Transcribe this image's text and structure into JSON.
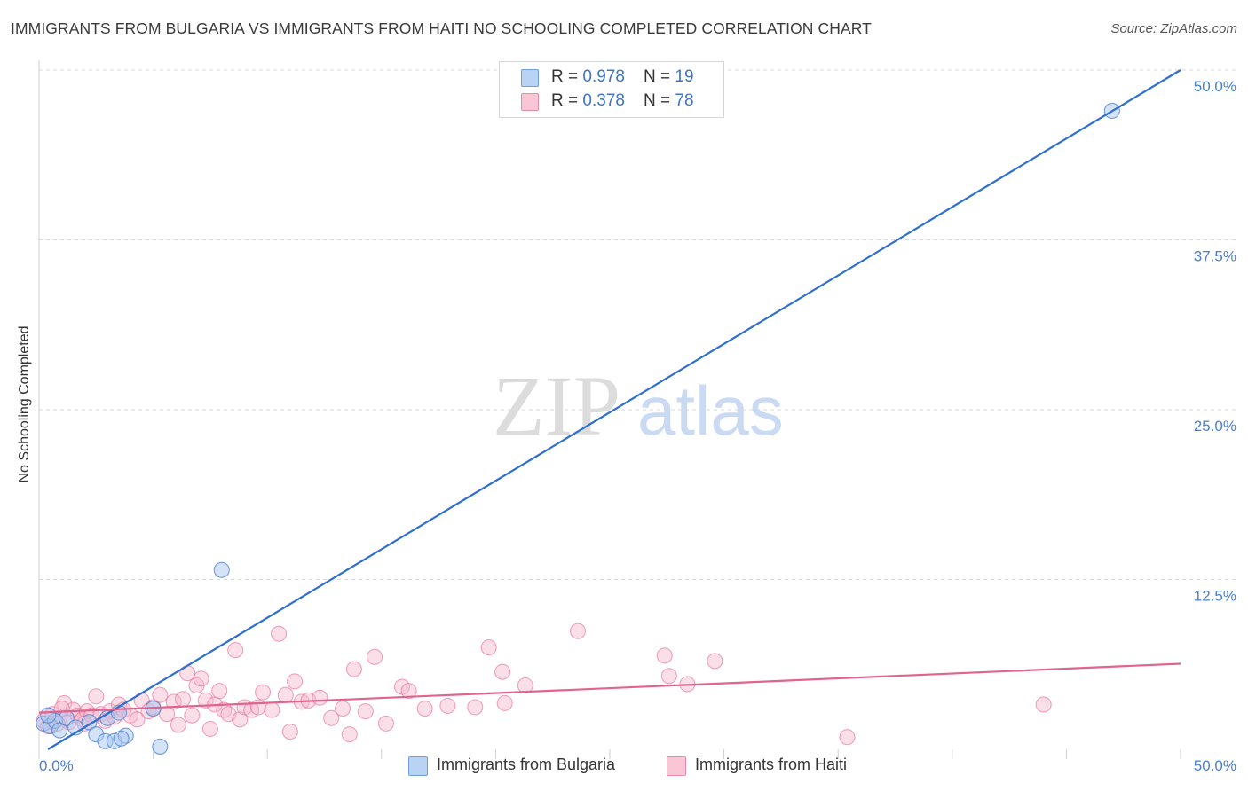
{
  "title": "IMMIGRANTS FROM BULGARIA VS IMMIGRANTS FROM HAITI NO SCHOOLING COMPLETED CORRELATION CHART",
  "source": "Source: ZipAtlas.com",
  "watermark": {
    "zip": "ZIP",
    "atlas": "atlas"
  },
  "colors": {
    "blue": "#4a7fcf",
    "blue_fill": "#a9c8f0",
    "blue_line": "#2e6fd0",
    "pink": "#e86b97",
    "pink_fill": "#f6b8cc",
    "pink_line": "#e0648f",
    "grid": "#d9d9d9",
    "tick_text": "#4a7fcf"
  },
  "legend": {
    "items": [
      {
        "r_label": "R = ",
        "r_value": "0.978",
        "n_label": "N = ",
        "n_value": "19"
      },
      {
        "r_label": "R = ",
        "r_value": "0.378",
        "n_label": "N = ",
        "n_value": "78"
      }
    ]
  },
  "bottom_legend": {
    "bulgaria": "Immigrants from Bulgaria",
    "haiti": "Immigrants from Haiti"
  },
  "chart_data": {
    "type": "scatter",
    "title": "IMMIGRANTS FROM BULGARIA VS IMMIGRANTS FROM HAITI NO SCHOOLING COMPLETED CORRELATION CHART",
    "xlabel": "",
    "ylabel": "No Schooling Completed",
    "xlim": [
      0,
      50
    ],
    "ylim": [
      0,
      50
    ],
    "x_ticks": [
      "0.0%",
      "50.0%"
    ],
    "y_ticks": [
      "12.5%",
      "25.0%",
      "37.5%",
      "50.0%"
    ],
    "y_tick_values": [
      12.5,
      25.0,
      37.5,
      50.0
    ],
    "grid": true,
    "legend_position": "top-center",
    "series": [
      {
        "name": "Immigrants from Bulgaria",
        "r": 0.978,
        "n": 19,
        "trend": {
          "x": [
            0.0,
            50.0
          ],
          "y": [
            0.0,
            50.0
          ]
        },
        "points": [
          {
            "x": 0.2,
            "y": 1.9
          },
          {
            "x": 0.5,
            "y": 1.7
          },
          {
            "x": 0.7,
            "y": 2.1
          },
          {
            "x": 0.9,
            "y": 1.4
          },
          {
            "x": 1.2,
            "y": 2.3
          },
          {
            "x": 1.6,
            "y": 1.6
          },
          {
            "x": 2.2,
            "y": 2.0
          },
          {
            "x": 2.5,
            "y": 1.1
          },
          {
            "x": 2.9,
            "y": 0.6
          },
          {
            "x": 3.0,
            "y": 2.3
          },
          {
            "x": 3.3,
            "y": 0.6
          },
          {
            "x": 3.5,
            "y": 2.7
          },
          {
            "x": 3.8,
            "y": 1.0
          },
          {
            "x": 3.6,
            "y": 0.8
          },
          {
            "x": 5.0,
            "y": 3.0
          },
          {
            "x": 5.3,
            "y": 0.2
          },
          {
            "x": 8.0,
            "y": 13.2
          },
          {
            "x": 47.0,
            "y": 47.0
          },
          {
            "x": 0.4,
            "y": 2.5
          }
        ]
      },
      {
        "name": "Immigrants from Haiti",
        "r": 0.378,
        "n": 78,
        "trend": {
          "x": [
            0.0,
            50.0
          ],
          "y": [
            2.7,
            6.3
          ]
        },
        "points": [
          {
            "x": 0.2,
            "y": 2.1
          },
          {
            "x": 0.4,
            "y": 1.7
          },
          {
            "x": 0.6,
            "y": 2.6
          },
          {
            "x": 0.9,
            "y": 2.3
          },
          {
            "x": 1.1,
            "y": 3.4
          },
          {
            "x": 1.3,
            "y": 2.0
          },
          {
            "x": 1.5,
            "y": 2.9
          },
          {
            "x": 1.7,
            "y": 2.5
          },
          {
            "x": 1.9,
            "y": 2.2
          },
          {
            "x": 2.1,
            "y": 2.8
          },
          {
            "x": 2.3,
            "y": 2.5
          },
          {
            "x": 2.5,
            "y": 3.9
          },
          {
            "x": 2.7,
            "y": 2.6
          },
          {
            "x": 2.9,
            "y": 2.1
          },
          {
            "x": 3.1,
            "y": 2.8
          },
          {
            "x": 3.3,
            "y": 2.4
          },
          {
            "x": 3.5,
            "y": 3.3
          },
          {
            "x": 3.7,
            "y": 2.9
          },
          {
            "x": 4.0,
            "y": 2.5
          },
          {
            "x": 4.3,
            "y": 2.2
          },
          {
            "x": 4.5,
            "y": 3.6
          },
          {
            "x": 4.8,
            "y": 2.8
          },
          {
            "x": 5.0,
            "y": 3.1
          },
          {
            "x": 5.3,
            "y": 4.0
          },
          {
            "x": 5.6,
            "y": 2.6
          },
          {
            "x": 5.9,
            "y": 3.5
          },
          {
            "x": 6.1,
            "y": 1.8
          },
          {
            "x": 6.3,
            "y": 3.7
          },
          {
            "x": 6.5,
            "y": 5.6
          },
          {
            "x": 6.7,
            "y": 2.5
          },
          {
            "x": 6.9,
            "y": 4.7
          },
          {
            "x": 7.1,
            "y": 5.2
          },
          {
            "x": 7.3,
            "y": 3.6
          },
          {
            "x": 7.5,
            "y": 1.5
          },
          {
            "x": 7.7,
            "y": 3.3
          },
          {
            "x": 7.9,
            "y": 4.3
          },
          {
            "x": 8.1,
            "y": 2.9
          },
          {
            "x": 8.3,
            "y": 2.6
          },
          {
            "x": 8.6,
            "y": 7.3
          },
          {
            "x": 8.8,
            "y": 2.2
          },
          {
            "x": 9.0,
            "y": 3.1
          },
          {
            "x": 9.3,
            "y": 2.9
          },
          {
            "x": 9.6,
            "y": 3.1
          },
          {
            "x": 9.8,
            "y": 4.2
          },
          {
            "x": 10.2,
            "y": 2.9
          },
          {
            "x": 10.5,
            "y": 8.5
          },
          {
            "x": 10.8,
            "y": 4.0
          },
          {
            "x": 11.0,
            "y": 1.3
          },
          {
            "x": 11.2,
            "y": 5.0
          },
          {
            "x": 11.5,
            "y": 3.5
          },
          {
            "x": 11.8,
            "y": 3.6
          },
          {
            "x": 12.3,
            "y": 3.8
          },
          {
            "x": 12.8,
            "y": 2.3
          },
          {
            "x": 13.3,
            "y": 3.0
          },
          {
            "x": 13.6,
            "y": 1.1
          },
          {
            "x": 13.8,
            "y": 5.9
          },
          {
            "x": 14.3,
            "y": 2.8
          },
          {
            "x": 14.7,
            "y": 6.8
          },
          {
            "x": 15.2,
            "y": 1.9
          },
          {
            "x": 15.9,
            "y": 4.6
          },
          {
            "x": 16.2,
            "y": 4.3
          },
          {
            "x": 16.9,
            "y": 3.0
          },
          {
            "x": 17.9,
            "y": 3.2
          },
          {
            "x": 19.1,
            "y": 3.1
          },
          {
            "x": 19.7,
            "y": 7.5
          },
          {
            "x": 20.3,
            "y": 5.7
          },
          {
            "x": 20.4,
            "y": 3.4
          },
          {
            "x": 21.3,
            "y": 4.7
          },
          {
            "x": 23.6,
            "y": 8.7
          },
          {
            "x": 27.4,
            "y": 6.9
          },
          {
            "x": 27.6,
            "y": 5.4
          },
          {
            "x": 28.4,
            "y": 4.8
          },
          {
            "x": 29.6,
            "y": 6.5
          },
          {
            "x": 35.4,
            "y": 0.9
          },
          {
            "x": 44.0,
            "y": 3.3
          },
          {
            "x": 0.8,
            "y": 1.9
          },
          {
            "x": 1.0,
            "y": 3.0
          },
          {
            "x": 2.0,
            "y": 1.9
          }
        ]
      }
    ]
  }
}
